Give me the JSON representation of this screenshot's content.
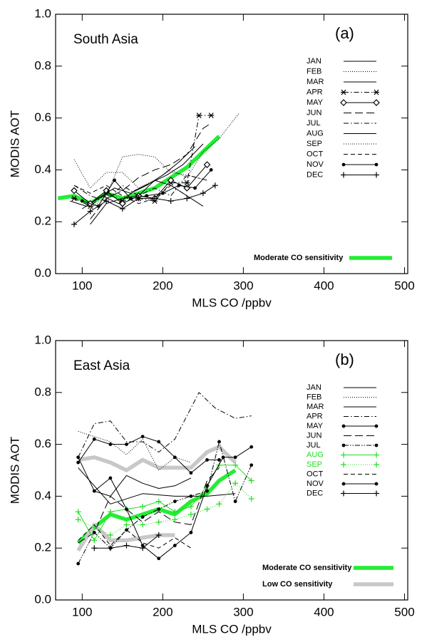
{
  "chart_data": [
    {
      "type": "line",
      "title": "South Asia",
      "annotation": "(a)",
      "x_label": "MLS CO /ppbv",
      "y_label": "MODIS AOT",
      "xlim": [
        67,
        504
      ],
      "ylim": [
        0,
        1
      ],
      "xticks": [
        100,
        200,
        300,
        400,
        500
      ],
      "yticks": [
        {
          "value": 0,
          "label": "0.0"
        },
        {
          "value": 0.2,
          "label": "0.2"
        },
        {
          "value": 0.4,
          "label": "0.4"
        },
        {
          "value": 0.6,
          "label": "0.6"
        },
        {
          "value": 0.8,
          "label": "0.8"
        },
        {
          "value": 1,
          "label": "1.0"
        }
      ],
      "series": [
        {
          "name": "JAN",
          "color": "#000000",
          "dash": "solid",
          "x": [
            85,
            105,
            125,
            145,
            165,
            185,
            205,
            225,
            250
          ],
          "values": [
            0.28,
            0.26,
            0.3,
            0.27,
            0.32,
            0.35,
            0.38,
            0.42,
            0.5
          ]
        },
        {
          "name": "FEB",
          "color": "#000000",
          "dash": "dotted",
          "x": [
            90,
            110,
            130,
            150,
            170,
            190,
            210,
            230,
            250,
            270,
            295
          ],
          "values": [
            0.44,
            0.33,
            0.39,
            0.39,
            0.33,
            0.36,
            0.4,
            0.37,
            0.47,
            0.52,
            0.62
          ]
        },
        {
          "name": "MAR",
          "color": "#000000",
          "dash": "solid",
          "x": [
            100,
            120,
            140,
            160,
            180,
            200,
            220,
            240
          ],
          "values": [
            0.25,
            0.29,
            0.33,
            0.31,
            0.34,
            0.38,
            0.43,
            0.49
          ]
        },
        {
          "name": "APR",
          "color": "#000000",
          "dash": "dashdot",
          "marker": "star",
          "x": [
            90,
            110,
            130,
            150,
            170,
            190,
            210,
            230,
            245,
            260
          ],
          "values": [
            0.29,
            0.26,
            0.31,
            0.28,
            0.29,
            0.28,
            0.35,
            0.35,
            0.61,
            0.61
          ]
        },
        {
          "name": "MAY",
          "color": "#000000",
          "dash": "solid",
          "marker": "diamond",
          "x": [
            90,
            110,
            130,
            150,
            170,
            190,
            210,
            230,
            255
          ],
          "values": [
            0.32,
            0.27,
            0.32,
            0.27,
            0.3,
            0.29,
            0.36,
            0.33,
            0.42
          ]
        },
        {
          "name": "JUN",
          "color": "#000000",
          "dash": "longdash",
          "x": [
            110,
            130,
            150,
            170,
            190,
            210,
            230,
            250,
            260
          ],
          "values": [
            0.21,
            0.29,
            0.32,
            0.37,
            0.4,
            0.42,
            0.46,
            0.56,
            0.58
          ]
        },
        {
          "name": "JUL",
          "color": "#000000",
          "dash": "dashdot",
          "x": [
            90,
            110,
            130,
            150,
            170,
            190,
            210,
            230,
            255
          ],
          "values": [
            0.34,
            0.3,
            0.28,
            0.34,
            0.3,
            0.33,
            0.3,
            0.38,
            0.36
          ]
        },
        {
          "name": "AUG",
          "color": "#000000",
          "dash": "solid",
          "x": [
            110,
            130,
            150,
            170,
            190,
            210,
            230,
            250
          ],
          "values": [
            0.19,
            0.27,
            0.29,
            0.3,
            0.36,
            0.34,
            0.3,
            0.26
          ]
        },
        {
          "name": "SEP",
          "color": "#000000",
          "dash": "dotted",
          "x": [
            110,
            130,
            150,
            170,
            190,
            210,
            230,
            255
          ],
          "values": [
            0.25,
            0.3,
            0.45,
            0.46,
            0.45,
            0.39,
            0.38,
            0.36
          ]
        },
        {
          "name": "OCT",
          "color": "#000000",
          "dash": "dash",
          "x": [
            90,
            110,
            130,
            150,
            170,
            190,
            210,
            230
          ],
          "values": [
            0.34,
            0.31,
            0.34,
            0.3,
            0.27,
            0.29,
            0.34,
            0.3
          ]
        },
        {
          "name": "NOV",
          "color": "#000000",
          "dash": "solid",
          "marker": "dot",
          "x": [
            100,
            120,
            140,
            160,
            180,
            200,
            220,
            240,
            260
          ],
          "values": [
            0.28,
            0.26,
            0.36,
            0.29,
            0.3,
            0.31,
            0.34,
            0.33,
            0.4
          ]
        },
        {
          "name": "DEC",
          "color": "#000000",
          "dash": "solid",
          "marker": "plus",
          "x": [
            90,
            110,
            130,
            150,
            170,
            190,
            210,
            230,
            250,
            265
          ],
          "values": [
            0.19,
            0.24,
            0.28,
            0.25,
            0.29,
            0.29,
            0.28,
            0.29,
            0.31,
            0.34
          ]
        },
        {
          "name": "Moderate CO sensitivity",
          "color": "#22ee33",
          "dash": "solid",
          "thick": true,
          "x": [
            70,
            90,
            110,
            130,
            150,
            170,
            190,
            210,
            230,
            250,
            270
          ],
          "values": [
            0.29,
            0.3,
            0.27,
            0.31,
            0.29,
            0.31,
            0.33,
            0.37,
            0.41,
            0.47,
            0.53
          ]
        }
      ]
    },
    {
      "type": "line",
      "title": "East Asia",
      "annotation": "(b)",
      "x_label": "MLS CO /ppbv",
      "y_label": "MODIS AOT",
      "xlim": [
        67,
        504
      ],
      "ylim": [
        0,
        1
      ],
      "xticks": [
        100,
        200,
        300,
        400,
        500
      ],
      "yticks": [
        {
          "value": 0,
          "label": "0.0"
        },
        {
          "value": 0.2,
          "label": "0.2"
        },
        {
          "value": 0.4,
          "label": "0.4"
        },
        {
          "value": 0.6,
          "label": "0.6"
        },
        {
          "value": 0.8,
          "label": "0.8"
        },
        {
          "value": 1,
          "label": "1.0"
        }
      ],
      "series": [
        {
          "name": "JAN",
          "color": "#000000",
          "dash": "solid",
          "x": [
            95,
            135,
            175,
            215,
            255,
            290
          ],
          "values": [
            0.51,
            0.37,
            0.41,
            0.4,
            0.4,
            0.41
          ]
        },
        {
          "name": "FEB",
          "color": "#000000",
          "dash": "dotted",
          "x": [
            95,
            115,
            135,
            155,
            175,
            195,
            215,
            235
          ],
          "values": [
            0.65,
            0.63,
            0.61,
            0.56,
            0.62,
            0.5,
            0.55,
            0.53
          ]
        },
        {
          "name": "MAR",
          "color": "#000000",
          "dash": "solid",
          "x": [
            115,
            135,
            155,
            175,
            195,
            215,
            235
          ],
          "values": [
            0.42,
            0.4,
            0.48,
            0.45,
            0.43,
            0.44,
            0.47
          ]
        },
        {
          "name": "APR",
          "color": "#000000",
          "dash": "dashdot",
          "x": [
            95,
            115,
            135,
            155,
            175,
            195,
            215,
            245,
            265,
            290,
            310
          ],
          "values": [
            0.55,
            0.68,
            0.69,
            0.61,
            0.61,
            0.57,
            0.62,
            0.8,
            0.74,
            0.7,
            0.71
          ]
        },
        {
          "name": "MAY",
          "color": "#000000",
          "dash": "solid",
          "marker": "dot",
          "x": [
            95,
            115,
            135,
            155,
            175,
            195,
            215,
            235,
            255,
            270
          ],
          "values": [
            0.53,
            0.62,
            0.6,
            0.6,
            0.63,
            0.61,
            0.55,
            0.49,
            0.54,
            0.54
          ]
        },
        {
          "name": "JUN",
          "color": "#000000",
          "dash": "longdash",
          "x": [
            95,
            115,
            135,
            155,
            175,
            195,
            215,
            235,
            255,
            270
          ],
          "values": [
            0.22,
            0.26,
            0.4,
            0.35,
            0.3,
            0.34,
            0.3,
            0.29,
            0.46,
            0.51
          ]
        },
        {
          "name": "JUL",
          "color": "#000000",
          "dash": "dashdotdot",
          "marker": "dot",
          "x": [
            95,
            115,
            135,
            155,
            175,
            195,
            215,
            235,
            255,
            270,
            290,
            310
          ],
          "values": [
            0.14,
            0.26,
            0.2,
            0.27,
            0.32,
            0.35,
            0.38,
            0.4,
            0.42,
            0.61,
            0.38,
            0.52
          ]
        },
        {
          "name": "AUG",
          "color": "#22dd22",
          "dash": "solid",
          "marker": "plus",
          "x": [
            95,
            115,
            135,
            155,
            175,
            195,
            215,
            235,
            255,
            270,
            290,
            310
          ],
          "values": [
            0.34,
            0.23,
            0.34,
            0.35,
            0.36,
            0.38,
            0.34,
            0.36,
            0.44,
            0.52,
            0.52,
            0.46
          ]
        },
        {
          "name": "SEP",
          "color": "#22dd22",
          "dash": "dotted",
          "marker": "plus",
          "x": [
            95,
            115,
            135,
            155,
            175,
            195,
            215,
            235,
            255,
            270,
            290,
            310
          ],
          "values": [
            0.31,
            0.28,
            0.25,
            0.29,
            0.29,
            0.3,
            0.31,
            0.33,
            0.35,
            0.37,
            0.45,
            0.39
          ]
        },
        {
          "name": "OCT",
          "color": "#000000",
          "dash": "dash",
          "x": [
            95,
            115,
            135,
            155,
            175,
            195,
            215,
            235
          ],
          "values": [
            0.23,
            0.29,
            0.21,
            0.27,
            0.22,
            0.2,
            0.24,
            0.2
          ]
        },
        {
          "name": "NOV",
          "color": "#000000",
          "dash": "solid",
          "marker": "dot",
          "x": [
            95,
            115,
            135,
            155,
            175,
            195,
            215,
            235,
            255,
            275,
            290,
            310
          ],
          "values": [
            0.55,
            0.42,
            0.47,
            0.35,
            0.21,
            0.16,
            0.21,
            0.26,
            0.44,
            0.55,
            0.55,
            0.59
          ]
        },
        {
          "name": "DEC",
          "color": "#000000",
          "dash": "solid",
          "marker": "plus",
          "x": [
            115,
            135,
            155,
            175,
            195
          ],
          "values": [
            0.2,
            0.2,
            0.21,
            0.2,
            0.25
          ]
        },
        {
          "name": "Moderate CO sensitivity",
          "color": "#22ee33",
          "dash": "solid",
          "thick": true,
          "x": [
            95,
            115,
            135,
            155,
            175,
            195,
            215,
            235,
            255,
            270,
            290
          ],
          "values": [
            0.22,
            0.28,
            0.33,
            0.31,
            0.33,
            0.35,
            0.33,
            0.38,
            0.41,
            0.46,
            0.5
          ]
        },
        {
          "name": "Low CO sensitivity",
          "color": "#c8c8c8",
          "dash": "solid",
          "thick": true,
          "x": [
            95,
            115,
            135,
            155,
            175,
            195,
            215,
            235,
            255,
            270,
            290,
            null,
            95,
            115,
            135,
            155,
            175,
            195,
            215
          ],
          "values": [
            0.54,
            0.55,
            0.53,
            0.5,
            0.54,
            0.51,
            0.51,
            0.51,
            0.57,
            0.59,
            0.53,
            null,
            0.19,
            0.29,
            0.23,
            0.23,
            0.24,
            0.25,
            0.25
          ]
        }
      ]
    }
  ]
}
